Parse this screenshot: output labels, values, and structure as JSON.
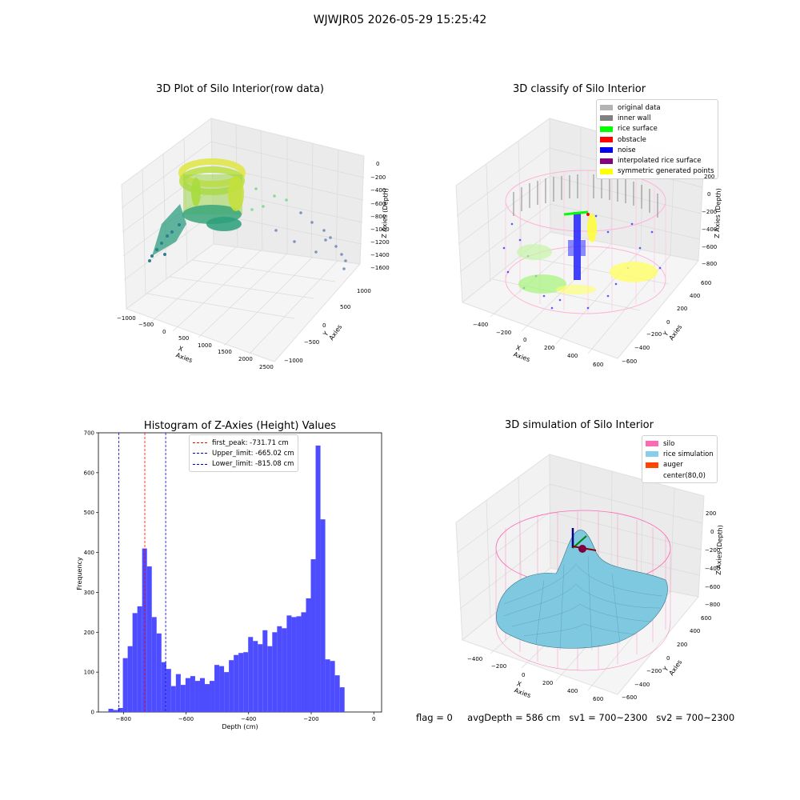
{
  "suptitle": "WJWJR05 2026-05-29 15:25:42",
  "panels": {
    "raw": {
      "title": "3D Plot of Silo Interior(row data)",
      "xlabel": "X Axies",
      "ylabel": "Y Axies",
      "zlabel": "Z Axies (Depth)",
      "xticks": [
        "−1000",
        "−500",
        "0",
        "500",
        "1000",
        "1500",
        "2000",
        "2500"
      ],
      "yticks": [
        "1000",
        "500",
        "0",
        "−500",
        "−1000"
      ],
      "zticks": [
        "0",
        "−200",
        "−400",
        "−600",
        "−800",
        "−1000",
        "−1200",
        "−1400",
        "−1600"
      ]
    },
    "classify": {
      "title": "3D classify of Silo Interior",
      "xlabel": "X Axies",
      "ylabel": "Y Axies",
      "zlabel": "Z Axies (Depth)",
      "xticks": [
        "−400",
        "−200",
        "0",
        "200",
        "400",
        "600"
      ],
      "yticks": [
        "600",
        "400",
        "200",
        "0",
        "−200",
        "−400",
        "−600"
      ],
      "zticks": [
        "200",
        "0",
        "−200",
        "−400",
        "−600",
        "−800"
      ],
      "legend": [
        {
          "label": "original data",
          "color": "#b3b3b3"
        },
        {
          "label": "inner wall",
          "color": "#808080"
        },
        {
          "label": "rice surface",
          "color": "#00ff00"
        },
        {
          "label": "obstacle",
          "color": "#ff0000"
        },
        {
          "label": "noise",
          "color": "#0000ee"
        },
        {
          "label": "interpolated rice surface",
          "color": "#800080"
        },
        {
          "label": "symmetric generated points",
          "color": "#ffff00"
        }
      ]
    },
    "simulation": {
      "title": "3D simulation of Silo Interior",
      "xlabel": "X Axies",
      "ylabel": "Y Axies",
      "zlabel": "Z Axies (Depth)",
      "xticks": [
        "−400",
        "−200",
        "0",
        "200",
        "400",
        "600"
      ],
      "yticks": [
        "600",
        "400",
        "200",
        "0",
        "−200",
        "−400",
        "−600"
      ],
      "zticks": [
        "200",
        "0",
        "−200",
        "−400",
        "−600",
        "−800"
      ],
      "legend": [
        {
          "label": "silo",
          "color": "#ff69b4"
        },
        {
          "label": "rice simulation",
          "color": "#87ceeb"
        },
        {
          "label": "auger",
          "color": "#ff4500"
        },
        {
          "label": "center(80,0)",
          "color": ""
        }
      ]
    }
  },
  "status": {
    "flag": "flag = 0",
    "avg": "avgDepth = 586 cm",
    "sv1": "sv1 = 700~2300",
    "sv2": "sv2 = 700~2300"
  },
  "chart_data": [
    {
      "type": "bar",
      "title": "Histogram of Z-Axies (Height) Values",
      "xlabel": "Depth (cm)",
      "ylabel": "Frequency",
      "xlim": [
        -880,
        25
      ],
      "ylim": [
        0,
        700
      ],
      "xticks": [
        -800,
        -600,
        -400,
        -200,
        0
      ],
      "yticks": [
        0,
        100,
        200,
        300,
        400,
        500,
        600,
        700
      ],
      "bar_color": "#4d4dff",
      "bins_start": -848,
      "bin_width": 15.4,
      "values": [
        8,
        5,
        10,
        135,
        165,
        248,
        265,
        410,
        365,
        238,
        197,
        125,
        108,
        65,
        95,
        68,
        85,
        90,
        78,
        85,
        70,
        78,
        118,
        115,
        100,
        130,
        143,
        148,
        150,
        188,
        178,
        170,
        205,
        165,
        200,
        215,
        210,
        242,
        238,
        240,
        250,
        285,
        383,
        668,
        483,
        132,
        128,
        92,
        62
      ],
      "vlines": [
        {
          "label": "first_peak: -731.71 cm",
          "x": -731.71,
          "color": "#ff0000"
        },
        {
          "label": "Upper_limit: -665.02 cm",
          "x": -665.02,
          "color": "#0000cc"
        },
        {
          "label": "Lower_limit: -815.08 cm",
          "x": -815.08,
          "color": "#0000cc"
        }
      ],
      "legend_position": "top-center"
    }
  ]
}
